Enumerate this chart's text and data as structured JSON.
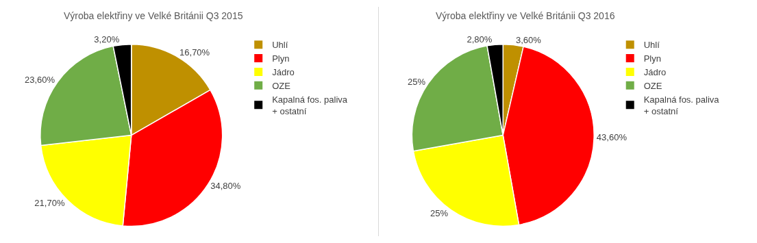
{
  "chart_data": [
    {
      "type": "pie",
      "title": "Výroba elektřiny ve Velké Británii Q3 2015",
      "categories": [
        "Uhlí",
        "Plyn",
        "Jádro",
        "OZE",
        "Kapalná fos. paliva + ostatní"
      ],
      "values": [
        16.7,
        34.8,
        21.7,
        23.6,
        3.2
      ],
      "value_labels": [
        "16,70%",
        "34,80%",
        "21,70%",
        "23,60%",
        "3,20%"
      ],
      "colors": [
        "#bf9000",
        "#ff0000",
        "#ffff00",
        "#70ad47",
        "#000000"
      ],
      "legend": "right"
    },
    {
      "type": "pie",
      "title": "Výroba elektřiny ve Velké Británii Q3 2016",
      "categories": [
        "Uhlí",
        "Plyn",
        "Jádro",
        "OZE",
        "Kapalná fos. paliva + ostatní"
      ],
      "values": [
        3.6,
        43.6,
        25,
        25,
        2.8
      ],
      "value_labels": [
        "3,60%",
        "43,60%",
        "25%",
        "25%",
        "2,80%"
      ],
      "colors": [
        "#bf9000",
        "#ff0000",
        "#ffff00",
        "#70ad47",
        "#000000"
      ],
      "legend": "right"
    }
  ]
}
